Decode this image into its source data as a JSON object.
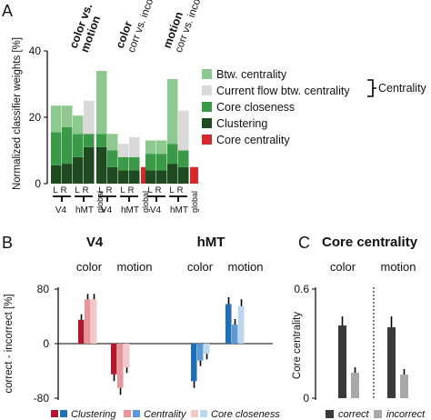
{
  "panels": {
    "A": "A",
    "B": "B",
    "C": "C"
  },
  "panelA": {
    "col_titles": [
      {
        "line1": "color vs.",
        "line2": "motion"
      },
      {
        "line1": "color",
        "line2": "corr vs. incorr"
      },
      {
        "line1": "motion",
        "line2": "corr vs. incorr"
      }
    ],
    "x_labels": {
      "l": "L",
      "r": "R",
      "v4": "V4",
      "hmt": "hMT",
      "global": "global"
    },
    "legend_group": "Centrality"
  },
  "panelB": {
    "headers": {
      "v4": "V4",
      "hmt": "hMT"
    },
    "sub": {
      "color": "color",
      "motion": "motion"
    },
    "legend": {
      "clustering": "Clustering",
      "centrality": "Centrality",
      "closeness": "Core closeness"
    }
  },
  "panelC": {
    "title": "Core centrality",
    "sub": {
      "color": "color",
      "motion": "motion"
    },
    "legend": {
      "correct": "correct",
      "incorrect": "incorrect"
    }
  },
  "chart_data": [
    {
      "type": "bar",
      "title": "",
      "ylabel": "Normalized classifier weights [%]",
      "ylim": [
        0,
        40
      ],
      "yticks": [
        0,
        20,
        40
      ],
      "stack_order": [
        "Clustering",
        "Core closeness",
        "Current flow btw. centrality",
        "Btw. centrality"
      ],
      "legend": [
        "Btw. centrality",
        "Current flow btw. centrality",
        "Core closeness",
        "Clustering",
        "Core centrality"
      ],
      "colors": {
        "Btw. centrality": "#8dc98e",
        "Current flow btw. centrality": "#d9d9d9",
        "Core closeness": "#3a9a48",
        "Clustering": "#1e4a20",
        "Core centrality": "#d6262e"
      },
      "groups": [
        {
          "name": "color vs. motion",
          "bars": [
            {
              "cat": "L V4",
              "stack": [
                5.5,
                10,
                0,
                8
              ]
            },
            {
              "cat": "R V4",
              "stack": [
                6,
                11,
                0,
                6.5
              ]
            },
            {
              "cat": "L hMT",
              "stack": [
                8,
                7,
                0,
                5.5
              ]
            },
            {
              "cat": "R hMT",
              "stack": [
                11,
                4,
                10,
                0
              ]
            }
          ],
          "global": 0
        },
        {
          "name": "color corr vs. incorr",
          "bars": [
            {
              "cat": "L V4",
              "stack": [
                11,
                4,
                0,
                19
              ]
            },
            {
              "cat": "R V4",
              "stack": [
                5,
                5,
                0,
                5
              ]
            },
            {
              "cat": "L hMT",
              "stack": [
                4,
                4,
                4,
                0
              ]
            },
            {
              "cat": "R hMT",
              "stack": [
                4,
                4,
                6,
                0
              ]
            }
          ],
          "global": 5
        },
        {
          "name": "motion corr vs. incorr",
          "bars": [
            {
              "cat": "L V4",
              "stack": [
                4,
                5,
                0,
                4
              ]
            },
            {
              "cat": "R V4",
              "stack": [
                4,
                5,
                0,
                4
              ]
            },
            {
              "cat": "L hMT",
              "stack": [
                6,
                6,
                0,
                19.5
              ]
            },
            {
              "cat": "R hMT",
              "stack": [
                5,
                5,
                12,
                0
              ]
            }
          ],
          "global": 5
        }
      ]
    },
    {
      "type": "bar",
      "title": "",
      "ylabel": "correct - incorrect [%]",
      "ylim": [
        -80,
        80
      ],
      "yticks": [
        -80,
        0,
        80
      ],
      "colors": {
        "V4_Clustering": "#b2182b",
        "V4_Centrality": "#e8959b",
        "V4_Core closeness": "#f4c7cb",
        "hMT_Clustering": "#1f6fb4",
        "hMT_Centrality": "#5b9bd5",
        "hMT_Core closeness": "#bcd6ef"
      },
      "groups": [
        {
          "area": "V4",
          "condition": "color",
          "values": [
            35,
            65,
            65
          ],
          "errors": [
            8,
            8,
            8
          ]
        },
        {
          "area": "V4",
          "condition": "motion",
          "values": [
            -45,
            -65,
            -35
          ],
          "errors": [
            10,
            10,
            8
          ]
        },
        {
          "area": "hMT",
          "condition": "color",
          "values": [
            -55,
            -25,
            -15
          ],
          "errors": [
            10,
            8,
            8
          ]
        },
        {
          "area": "hMT",
          "condition": "motion",
          "values": [
            58,
            28,
            55
          ],
          "errors": [
            10,
            8,
            10
          ]
        }
      ]
    },
    {
      "type": "bar",
      "title": "Core centrality",
      "ylabel": "Core centrality",
      "ylim": [
        0,
        0.6
      ],
      "yticks": [
        0,
        0.6
      ],
      "categories": [
        "color",
        "motion"
      ],
      "series": [
        {
          "name": "correct",
          "color": "#3a3a3a",
          "values": [
            0.4,
            0.39
          ],
          "errors": [
            0.05,
            0.06
          ]
        },
        {
          "name": "incorrect",
          "color": "#a9a9a9",
          "values": [
            0.14,
            0.13
          ],
          "errors": [
            0.03,
            0.03
          ]
        }
      ]
    }
  ]
}
